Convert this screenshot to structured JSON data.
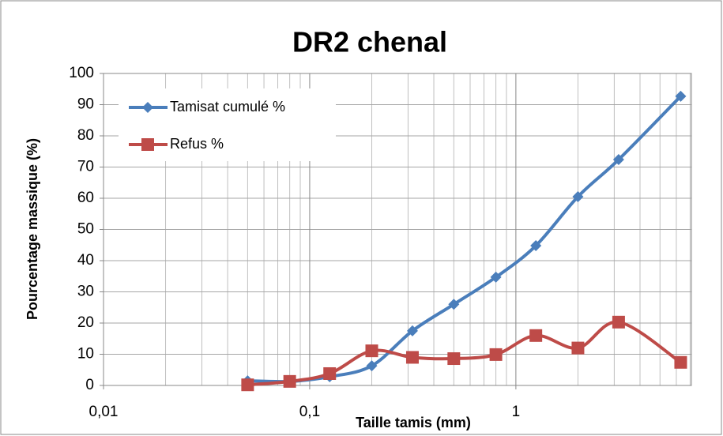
{
  "chart_data": {
    "type": "line",
    "title": "DR2 chenal",
    "xlabel": "Taille tamis (mm)",
    "ylabel": "Pourcentage massique (%)",
    "x": [
      0.05,
      0.08,
      0.125,
      0.2,
      0.315,
      0.5,
      0.8,
      1.25,
      2,
      3.15,
      6.3
    ],
    "series": [
      {
        "name": "Tamisat cumulé %",
        "color": "#4a7ebb",
        "marker": "diamond",
        "values": [
          1.5,
          1.3,
          2.8,
          6.3,
          17.5,
          26,
          34.7,
          44.8,
          60.5,
          72.4,
          92.7
        ]
      },
      {
        "name": "Refus %",
        "color": "#be4b48",
        "marker": "square",
        "values": [
          0.2,
          1.3,
          3.8,
          11.1,
          9,
          8.6,
          9.9,
          16,
          12,
          20.3,
          7.4
        ]
      }
    ],
    "xlog": true,
    "xlim": [
      0.01,
      7.1
    ],
    "xticks": [
      {
        "value": 0.01,
        "label": "0,01"
      },
      {
        "value": 0.1,
        "label": "0,1"
      },
      {
        "value": 1,
        "label": "1"
      }
    ],
    "xminor_ticks": [
      0.02,
      0.03,
      0.04,
      0.05,
      0.06,
      0.07,
      0.08,
      0.09,
      0.2,
      0.3,
      0.4,
      0.5,
      0.6,
      0.7,
      0.8,
      0.9,
      2,
      3,
      4,
      5,
      6,
      7
    ],
    "ylim": [
      0,
      100
    ],
    "yticks": [
      0,
      10,
      20,
      30,
      40,
      50,
      60,
      70,
      80,
      90,
      100
    ],
    "grid": true,
    "legend": "upper left"
  }
}
